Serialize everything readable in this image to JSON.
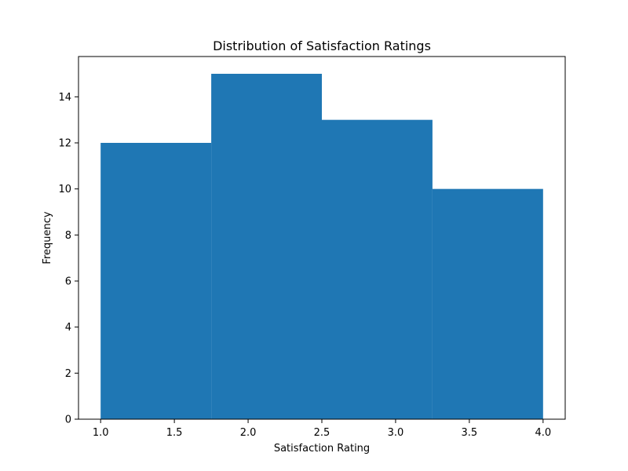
{
  "chart_data": {
    "type": "bar",
    "title": "Distribution of Satisfaction Ratings",
    "xlabel": "Satisfaction Rating",
    "ylabel": "Frequency",
    "bins": [
      {
        "start": 1.0,
        "end": 1.75,
        "value": 12
      },
      {
        "start": 1.75,
        "end": 2.5,
        "value": 15
      },
      {
        "start": 2.5,
        "end": 3.25,
        "value": 13
      },
      {
        "start": 3.25,
        "end": 4.0,
        "value": 10
      }
    ],
    "xlim": [
      0.85,
      4.15
    ],
    "ylim": [
      0,
      15.75
    ],
    "xticks": [
      {
        "value": 1.0,
        "label": "1.0"
      },
      {
        "value": 1.5,
        "label": "1.5"
      },
      {
        "value": 2.0,
        "label": "2.0"
      },
      {
        "value": 2.5,
        "label": "2.5"
      },
      {
        "value": 3.0,
        "label": "3.0"
      },
      {
        "value": 3.5,
        "label": "3.5"
      },
      {
        "value": 4.0,
        "label": "4.0"
      }
    ],
    "yticks": [
      {
        "value": 0,
        "label": "0"
      },
      {
        "value": 2,
        "label": "2"
      },
      {
        "value": 4,
        "label": "4"
      },
      {
        "value": 6,
        "label": "6"
      },
      {
        "value": 8,
        "label": "8"
      },
      {
        "value": 10,
        "label": "10"
      },
      {
        "value": 12,
        "label": "12"
      },
      {
        "value": 14,
        "label": "14"
      }
    ],
    "bar_color": "#1f77b4",
    "grid": false,
    "legend": "none"
  }
}
